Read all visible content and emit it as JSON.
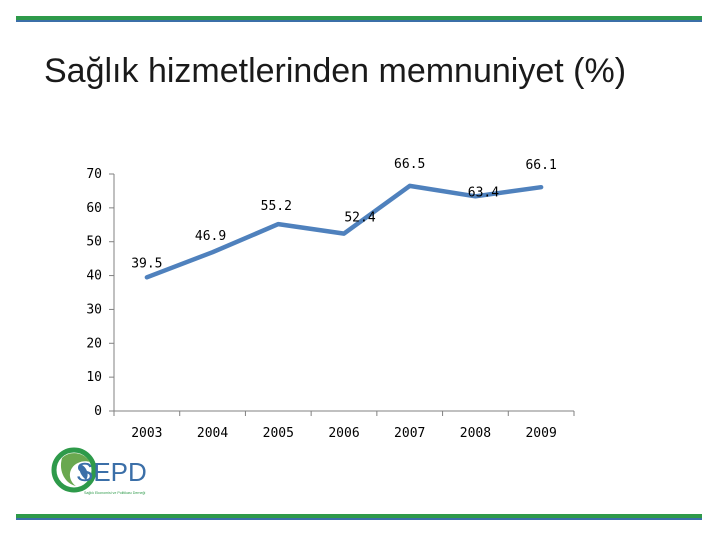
{
  "slide": {
    "title": "Sağlık hizmetlerinden memnuniyet (%)",
    "accent_color": "#2e9a4a",
    "secondary_color": "#3b6fa8"
  },
  "logo": {
    "icon": "sepd-logo-icon",
    "text": "SEPD",
    "subtitle": "Sağlık Ekonomisi ve Politikası Derneği"
  },
  "chart_data": {
    "type": "line",
    "x": [
      "2003",
      "2004",
      "2005",
      "2006",
      "2007",
      "2008",
      "2009"
    ],
    "series": [
      {
        "values": [
          39.5,
          46.9,
          55.2,
          52.4,
          66.5,
          63.4,
          66.1
        ],
        "color": "#4f81bd"
      }
    ],
    "data_labels": [
      "39.5",
      "46.9",
      "55.2",
      "52.4",
      "66.5",
      "63.4",
      "66.1"
    ],
    "y_ticks": [
      0,
      10,
      20,
      30,
      40,
      50,
      60,
      70
    ],
    "ylim": [
      0,
      70
    ],
    "grid": false,
    "legend": "none"
  }
}
